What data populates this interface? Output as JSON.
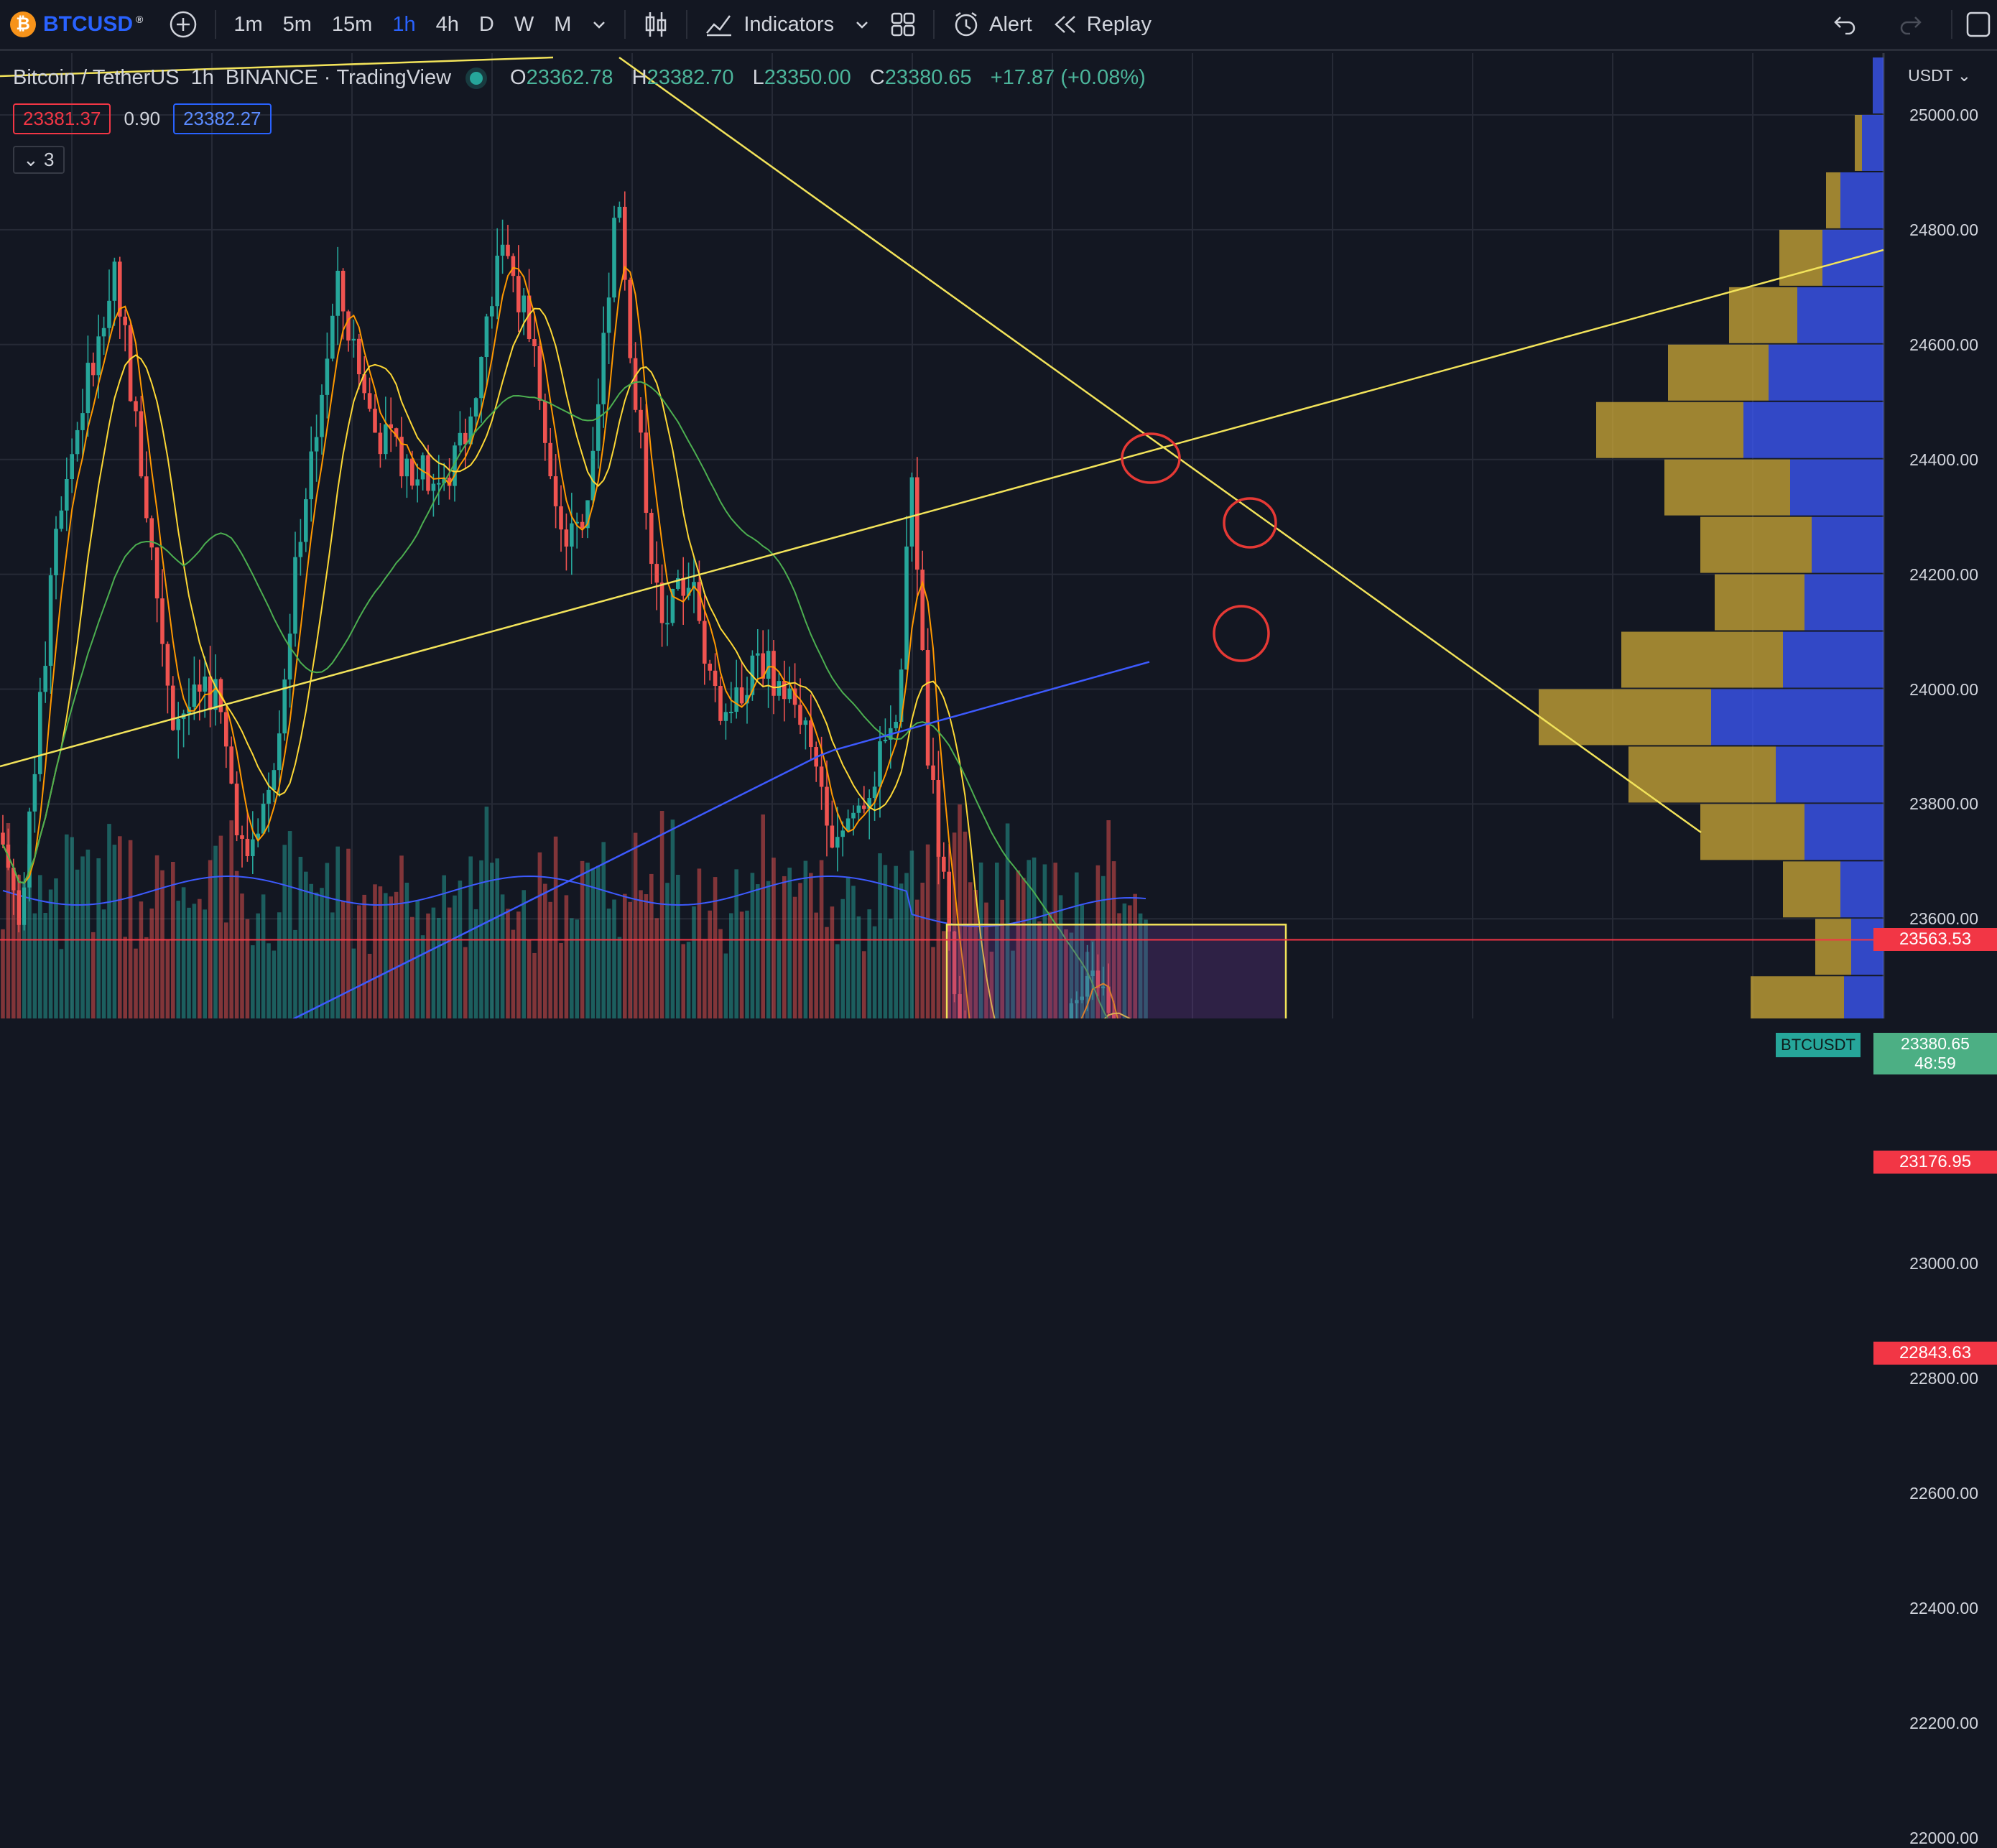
{
  "toolbar": {
    "symbol": "BTCUSD",
    "timeframes": [
      "1m",
      "5m",
      "15m",
      "1h",
      "4h",
      "D",
      "W",
      "M"
    ],
    "active_timeframe": "1h",
    "indicators_label": "Indicators",
    "alert_label": "Alert",
    "replay_label": "Replay"
  },
  "legend": {
    "title": "Bitcoin / TetherUS",
    "interval": "1h",
    "exchange": "BINANCE",
    "source": "TradingView",
    "open_label": "O",
    "open": "23362.78",
    "high_label": "H",
    "high": "23382.70",
    "low_label": "L",
    "low": "23350.00",
    "close_label": "C",
    "close": "23380.65",
    "change": "+17.87 (+0.08%)",
    "bid": "23381.37",
    "spread": "0.90",
    "ask": "23382.27",
    "collapsed_count": "3"
  },
  "axis": {
    "currency": "USDT",
    "ticks": [
      "25000.00",
      "24800.00",
      "24600.00",
      "24400.00",
      "24200.00",
      "24000.00",
      "23800.00",
      "23600.00",
      "23000.00",
      "22800.00",
      "22600.00",
      "22400.00",
      "22200.00",
      "22000.00"
    ],
    "tick_values": [
      25000,
      24800,
      24600,
      24400,
      24200,
      24000,
      23800,
      23600,
      23000,
      22800,
      22600,
      22400,
      22200,
      22000
    ],
    "price_tags": [
      {
        "label": "23563.53",
        "value": 23563.53
      },
      {
        "label": "23176.95",
        "value": 23176.95
      },
      {
        "label": "22843.63",
        "value": 22843.63
      }
    ],
    "last_symbol": "BTCUSDT",
    "last_price": "23380.65",
    "countdown": "48:59"
  },
  "colors": {
    "background": "#131722",
    "up": "#26a69a",
    "down": "#ef5350",
    "trendline": "#f2e35a",
    "support_line": "#f23645",
    "ma_blue": "#3d5afe",
    "ma_green": "#4caf50",
    "ma_yellow": "#fdd835",
    "ma_orange": "#ff9800",
    "accent": "#2962ff"
  },
  "icons": [
    "btc-logo-icon",
    "add-symbol-icon",
    "timeframe-chevron-icon",
    "candles-icon",
    "indicators-icon",
    "indicators-chevron-icon",
    "layout-grid-icon",
    "alert-clock-icon",
    "replay-rewind-icon",
    "undo-icon",
    "redo-icon",
    "fullscreen-icon"
  ]
}
